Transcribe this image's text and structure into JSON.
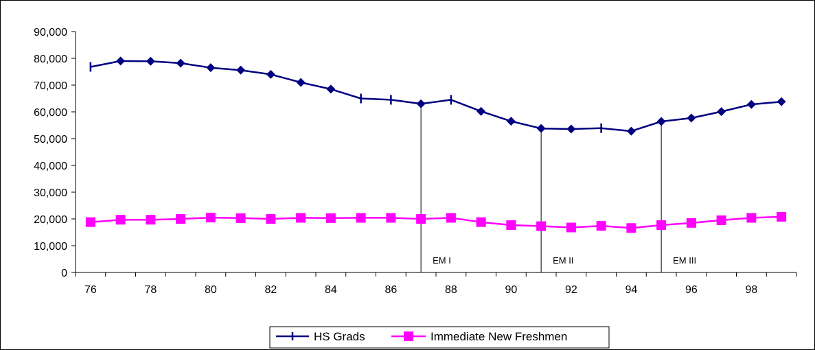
{
  "chart_data": {
    "type": "line",
    "x": [
      76,
      77,
      78,
      79,
      80,
      81,
      82,
      83,
      84,
      85,
      86,
      87,
      88,
      89,
      90,
      91,
      92,
      93,
      94,
      95,
      96,
      97,
      98,
      99
    ],
    "xticks": [
      "76",
      "78",
      "80",
      "82",
      "84",
      "86",
      "88",
      "90",
      "92",
      "94",
      "96",
      "98"
    ],
    "yticks": [
      "0",
      "10,000",
      "20,000",
      "30,000",
      "40,000",
      "50,000",
      "60,000",
      "70,000",
      "80,000",
      "90,000"
    ],
    "ylim": [
      0,
      90000
    ],
    "xlim": [
      75.5,
      99.5
    ],
    "grid": false,
    "legend_position": "bottom",
    "series": [
      {
        "name": "HS Grads",
        "color": "#000080",
        "values": [
          76800,
          79000,
          78900,
          78200,
          76500,
          75600,
          74000,
          71000,
          68500,
          65000,
          64500,
          63000,
          64500,
          60200,
          56500,
          53800,
          53600,
          53900,
          52800,
          56400,
          57700,
          60100,
          62800,
          63800
        ],
        "markers": [
          "bar",
          "diamond",
          "diamond",
          "diamond",
          "diamond",
          "diamond",
          "diamond",
          "diamond",
          "diamond",
          "bar",
          "bar",
          "diamond",
          "bar",
          "diamond",
          "diamond",
          "diamond",
          "diamond",
          "bar",
          "diamond",
          "diamond",
          "diamond",
          "diamond",
          "diamond",
          "diamond"
        ]
      },
      {
        "name": "Immediate New Freshmen",
        "color": "#FF00FF",
        "values": [
          18800,
          19700,
          19700,
          20000,
          20500,
          20300,
          20000,
          20400,
          20300,
          20400,
          20400,
          20000,
          20400,
          18800,
          17700,
          17300,
          16800,
          17400,
          16600,
          17700,
          18500,
          19500,
          20400,
          20800
        ]
      }
    ],
    "annotations": [
      {
        "label": "EM I",
        "x": 87
      },
      {
        "label": "EM II",
        "x": 91
      },
      {
        "label": "EM III",
        "x": 95
      }
    ]
  }
}
